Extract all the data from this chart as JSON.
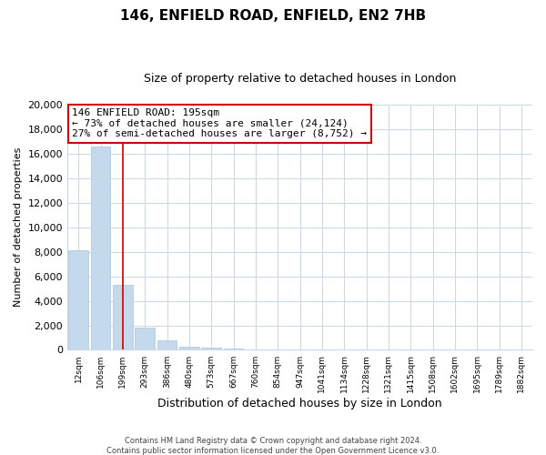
{
  "title": "146, ENFIELD ROAD, ENFIELD, EN2 7HB",
  "subtitle": "Size of property relative to detached houses in London",
  "xlabel": "Distribution of detached houses by size in London",
  "ylabel": "Number of detached properties",
  "bar_values": [
    8150,
    16550,
    5300,
    1820,
    780,
    290,
    200,
    130,
    0,
    0,
    0,
    0,
    0,
    0,
    0,
    0,
    0,
    0,
    0,
    0,
    0
  ],
  "bar_labels": [
    "12sqm",
    "106sqm",
    "199sqm",
    "293sqm",
    "386sqm",
    "480sqm",
    "573sqm",
    "667sqm",
    "760sqm",
    "854sqm",
    "947sqm",
    "1041sqm",
    "1134sqm",
    "1228sqm",
    "1321sqm",
    "1415sqm",
    "1508sqm",
    "1602sqm",
    "1695sqm",
    "1789sqm",
    "1882sqm"
  ],
  "bar_color": "#c5d9ec",
  "bar_edge_color": "#a8c4de",
  "vline_x": 2,
  "vline_color": "#cc0000",
  "ylim": [
    0,
    20000
  ],
  "yticks": [
    0,
    2000,
    4000,
    6000,
    8000,
    10000,
    12000,
    14000,
    16000,
    18000,
    20000
  ],
  "annotation_title": "146 ENFIELD ROAD: 195sqm",
  "annotation_line1": "← 73% of detached houses are smaller (24,124)",
  "annotation_line2": "27% of semi-detached houses are larger (8,752) →",
  "annotation_box_color": "#ffffff",
  "annotation_box_edge": "#cc0000",
  "footer_line1": "Contains HM Land Registry data © Crown copyright and database right 2024.",
  "footer_line2": "Contains public sector information licensed under the Open Government Licence v3.0.",
  "background_color": "#ffffff",
  "grid_color": "#c8d8e8",
  "title_fontsize": 11,
  "subtitle_fontsize": 9,
  "ylabel_fontsize": 8,
  "xlabel_fontsize": 9,
  "ytick_fontsize": 8,
  "xtick_fontsize": 6.5,
  "annot_fontsize": 8
}
